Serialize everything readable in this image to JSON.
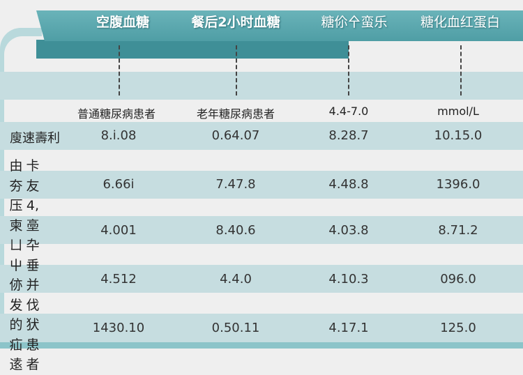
{
  "header": {
    "columns": [
      "空腹血糖",
      "餐后2小时血糖",
      "糖伱㐃蛮乐",
      "糖化血红蛋白"
    ]
  },
  "subheader": [
    "普通糖尿病患者",
    "老年糖尿病患者",
    "4.4-7.0",
    "mmol/L"
  ],
  "rows": [
    {
      "label": "廋速壽利",
      "values": [
        "8.i.08",
        "0.64.07",
        "8.28.7",
        "10.15.0"
      ]
    },
    {
      "values": [
        "6.66i",
        "7.47.8",
        "4.48.8",
        "1396.0"
      ]
    },
    {
      "values": [
        "4.001",
        "8.40.6",
        "4.03.8",
        "8.71.2"
      ]
    },
    {
      "values": [
        "4.512",
        "4.4.0",
        "4.10.3",
        "096.0"
      ]
    },
    {
      "values": [
        "1430.10",
        "0.50.11",
        "4.17.1",
        "125.0"
      ]
    }
  ],
  "left_column": {
    "col1": [
      "由",
      "夯",
      "压",
      "柬",
      "ㄩ",
      "屮",
      "㑊",
      "发",
      "的",
      "疝",
      "逺"
    ],
    "col2": [
      "卡",
      "友",
      "4,",
      "㙜",
      "卆",
      "垂",
      "并",
      "伐",
      "犾",
      "患",
      "者"
    ]
  },
  "colors": {
    "header": "#5aa9b0",
    "band": "#c6dde0",
    "background": "#efefef"
  }
}
